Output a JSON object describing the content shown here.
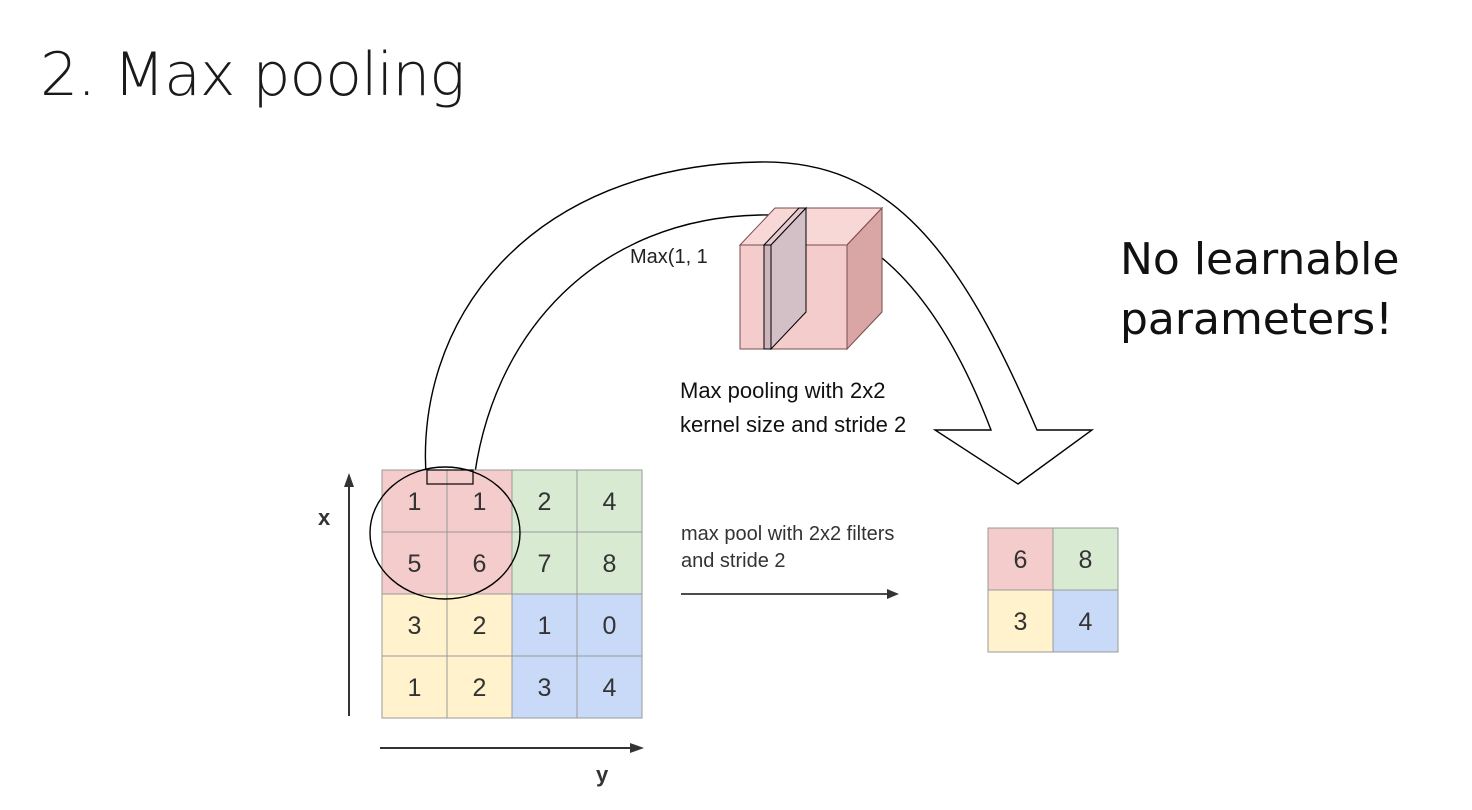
{
  "title": "2. Max pooling",
  "callout": {
    "line1": "No learnable",
    "line2": "parameters!"
  },
  "cube_label": "Max(1, 1",
  "caption": {
    "line1": "Max pooling with 2x2",
    "line2": "kernel size and stride 2"
  },
  "axes": {
    "x_label": "x",
    "y_label": "y"
  },
  "operation": {
    "line1": "max pool with 2x2 filters",
    "line2": "and stride 2"
  },
  "input_grid": [
    [
      "1",
      "1",
      "2",
      "4"
    ],
    [
      "5",
      "6",
      "7",
      "8"
    ],
    [
      "3",
      "2",
      "1",
      "0"
    ],
    [
      "1",
      "2",
      "3",
      "4"
    ]
  ],
  "output_grid": [
    [
      "6",
      "8"
    ],
    [
      "3",
      "4"
    ]
  ],
  "colors": {
    "red": "#f4cccc",
    "green": "#d9ead3",
    "yellow": "#fff2cc",
    "blue": "#c9daf8",
    "grid_line": "#999999",
    "cube_front": "#f4cccc",
    "cube_top": "#f8d7d7",
    "cube_side": "#d9a5a5",
    "slice": "#d3bfc6"
  }
}
